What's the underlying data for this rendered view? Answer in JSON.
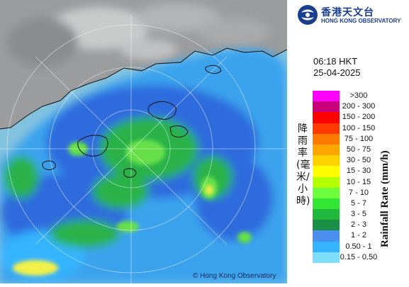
{
  "header": {
    "org_name_cn": "香港天文台",
    "org_name_en": "HONG KONG OBSERVATORY"
  },
  "timestamp": {
    "time": "06:18 HKT",
    "date": "25-04-2025"
  },
  "legend": {
    "label_cn": "降雨率(毫米/小時)",
    "label_en": "Rainfall Rate (mm/h)",
    "bins": [
      {
        "label": ">300",
        "color": "#ff00ff"
      },
      {
        "label": "200 - 300",
        "color": "#c8007a"
      },
      {
        "label": "150 - 200",
        "color": "#ff0000"
      },
      {
        "label": "100 - 150",
        "color": "#ff3a00"
      },
      {
        "label": "75 - 100",
        "color": "#ff7b00"
      },
      {
        "label": "50 - 75",
        "color": "#ffa500"
      },
      {
        "label": "30 - 50",
        "color": "#ffd200"
      },
      {
        "label": "15 - 30",
        "color": "#ffff00"
      },
      {
        "label": "10 - 15",
        "color": "#b6ff00"
      },
      {
        "label": "7 - 10",
        "color": "#6dff3c"
      },
      {
        "label": "5 - 7",
        "color": "#33e633"
      },
      {
        "label": "3 - 5",
        "color": "#22b83c"
      },
      {
        "label": "2 - 3",
        "color": "#1a8f45"
      },
      {
        "label": "1 - 2",
        "color": "#4a8ef0"
      },
      {
        "label": "0.50 - 1",
        "color": "#35b4ff"
      },
      {
        "label": "0.15 - 0.50",
        "color": "#7dddfb"
      }
    ]
  },
  "map": {
    "copyright": "© Hong Kong Observatory",
    "colors": {
      "sea": "#83c2df",
      "land": "#8e9091",
      "land_light": "#b8b9ba",
      "rain_light": "#3aa3ee",
      "rain_blue": "#2e6cde",
      "rain_green": "#2bb24a",
      "rain_bright": "#66e04a",
      "rain_yellow": "#f2f04a"
    }
  }
}
